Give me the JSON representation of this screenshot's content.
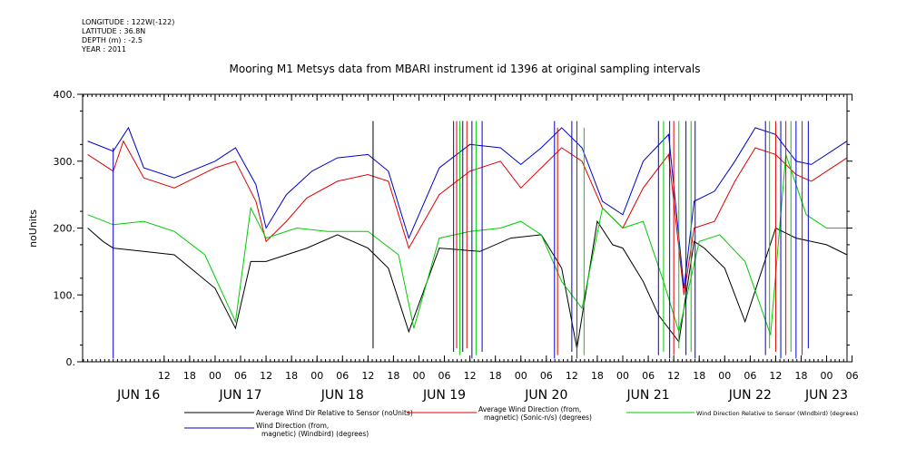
{
  "metadata": [
    "LONGITUDE : 122W(-122)",
    "LATITUDE : 36.8N",
    "DEPTH (m) : -2.5",
    "YEAR : 2011"
  ],
  "chart_data": {
    "type": "line",
    "title": "Mooring M1 Metsys data from MBARI instrument id 1396 at original sampling intervals",
    "ylabel": "noUnits",
    "xlabel": "",
    "ylim": [
      0,
      400
    ],
    "yticks": [
      0,
      100,
      200,
      300,
      400
    ],
    "ytick_labels": [
      "0.",
      "100.",
      "200.",
      "300.",
      "400."
    ],
    "xlim": [
      -0.3,
      7.2
    ],
    "hour_ticks": [
      {
        "x": 0.5,
        "label": "12"
      },
      {
        "x": 0.75,
        "label": "18"
      },
      {
        "x": 1.0,
        "label": "00"
      },
      {
        "x": 1.25,
        "label": "06"
      },
      {
        "x": 1.5,
        "label": "12"
      },
      {
        "x": 1.75,
        "label": "18"
      },
      {
        "x": 2.0,
        "label": "00"
      },
      {
        "x": 2.25,
        "label": "06"
      },
      {
        "x": 2.5,
        "label": "12"
      },
      {
        "x": 2.75,
        "label": "18"
      },
      {
        "x": 3.0,
        "label": "00"
      },
      {
        "x": 3.25,
        "label": "06"
      },
      {
        "x": 3.5,
        "label": "12"
      },
      {
        "x": 3.75,
        "label": "18"
      },
      {
        "x": 4.0,
        "label": "00"
      },
      {
        "x": 4.25,
        "label": "06"
      },
      {
        "x": 4.5,
        "label": "12"
      },
      {
        "x": 4.75,
        "label": "18"
      },
      {
        "x": 5.0,
        "label": "00"
      },
      {
        "x": 5.25,
        "label": "06"
      },
      {
        "x": 5.5,
        "label": "12"
      },
      {
        "x": 5.75,
        "label": "18"
      },
      {
        "x": 6.0,
        "label": "00"
      },
      {
        "x": 6.25,
        "label": "06"
      },
      {
        "x": 6.5,
        "label": "12"
      },
      {
        "x": 6.75,
        "label": "18"
      },
      {
        "x": 7.0,
        "label": "00"
      },
      {
        "x": 7.25,
        "label": "06"
      }
    ],
    "day_labels": [
      {
        "x": 0.25,
        "label": "JUN 16"
      },
      {
        "x": 1.25,
        "label": "JUN 17"
      },
      {
        "x": 2.25,
        "label": "JUN 18"
      },
      {
        "x": 3.25,
        "label": "JUN 19"
      },
      {
        "x": 4.25,
        "label": "JUN 20"
      },
      {
        "x": 5.25,
        "label": "JUN 21"
      },
      {
        "x": 6.25,
        "label": "JUN 22"
      },
      {
        "x": 7.0,
        "label": "JUN 23"
      }
    ],
    "series": [
      {
        "name": "Average Wind Dir Relative to Sensor (noUnits)",
        "color": "#000000",
        "x": [
          -0.25,
          -0.1,
          0.0,
          0.3,
          0.6,
          1.0,
          1.2,
          1.35,
          1.5,
          1.9,
          2.2,
          2.5,
          2.7,
          2.9,
          3.2,
          3.6,
          3.9,
          4.2,
          4.4,
          4.55,
          4.75,
          4.9,
          5.0,
          5.2,
          5.35,
          5.55,
          5.7,
          5.8,
          6.0,
          6.2,
          6.5,
          6.7,
          7.0,
          7.2
        ],
        "values": [
          200,
          180,
          170,
          165,
          160,
          110,
          50,
          150,
          150,
          170,
          190,
          170,
          140,
          45,
          170,
          165,
          185,
          190,
          140,
          20,
          210,
          175,
          170,
          120,
          70,
          30,
          180,
          170,
          140,
          60,
          200,
          185,
          175,
          160
        ]
      },
      {
        "name": "Average Wind Direction (from, magnetic) (Sonic-n/s) (degrees)",
        "color": "#e00000",
        "x": [
          -0.25,
          0.0,
          0.1,
          0.3,
          0.6,
          1.0,
          1.2,
          1.4,
          1.5,
          1.7,
          1.9,
          2.2,
          2.5,
          2.7,
          2.9,
          3.2,
          3.5,
          3.8,
          4.0,
          4.2,
          4.4,
          4.6,
          4.8,
          5.0,
          5.2,
          5.45,
          5.6,
          5.7,
          5.9,
          6.1,
          6.3,
          6.5,
          6.7,
          6.85,
          7.2
        ],
        "values": [
          310,
          285,
          330,
          275,
          260,
          290,
          300,
          240,
          180,
          210,
          245,
          270,
          280,
          270,
          170,
          250,
          285,
          300,
          260,
          290,
          320,
          300,
          230,
          200,
          260,
          310,
          100,
          200,
          210,
          270,
          320,
          310,
          280,
          270,
          305
        ]
      },
      {
        "name": "Wind Direction Relative to Sensor (Windbird) (degrees)",
        "color": "#00cc00",
        "x": [
          -0.25,
          0.0,
          0.3,
          0.6,
          0.9,
          1.2,
          1.35,
          1.5,
          1.8,
          2.1,
          2.5,
          2.8,
          2.95,
          3.2,
          3.5,
          3.8,
          4.0,
          4.2,
          4.4,
          4.6,
          4.8,
          5.0,
          5.2,
          5.4,
          5.55,
          5.75,
          5.95,
          6.2,
          6.45,
          6.6,
          6.8,
          7.0,
          7.2
        ],
        "values": [
          220,
          205,
          210,
          195,
          160,
          60,
          230,
          185,
          200,
          195,
          195,
          160,
          50,
          185,
          195,
          200,
          210,
          190,
          120,
          80,
          230,
          200,
          210,
          120,
          45,
          180,
          190,
          150,
          40,
          310,
          220,
          200,
          200
        ]
      },
      {
        "name": "Wind Direction (from, magnetic) (Windbird) (degrees)",
        "color": "#0000cc",
        "x": [
          -0.25,
          0.0,
          0.15,
          0.3,
          0.6,
          1.0,
          1.2,
          1.4,
          1.5,
          1.7,
          1.95,
          2.2,
          2.5,
          2.7,
          2.9,
          3.2,
          3.5,
          3.8,
          4.0,
          4.2,
          4.4,
          4.6,
          4.8,
          5.0,
          5.2,
          5.45,
          5.6,
          5.7,
          5.9,
          6.1,
          6.3,
          6.5,
          6.7,
          6.85,
          7.2
        ],
        "values": [
          330,
          315,
          350,
          290,
          275,
          300,
          320,
          265,
          200,
          250,
          285,
          305,
          310,
          285,
          185,
          290,
          325,
          320,
          295,
          320,
          350,
          320,
          240,
          220,
          300,
          340,
          110,
          240,
          255,
          300,
          350,
          340,
          300,
          295,
          330
        ]
      }
    ],
    "spikes": [
      {
        "x": 0.0,
        "ymin": 5,
        "ymax": 320,
        "color": "#0000cc"
      },
      {
        "x": 2.55,
        "ymin": 20,
        "ymax": 360,
        "color": "#000000"
      },
      {
        "x": 3.34,
        "ymin": 15,
        "ymax": 360,
        "color": "#0000cc"
      },
      {
        "x": 3.37,
        "ymin": 20,
        "ymax": 360,
        "color": "#e00000"
      },
      {
        "x": 3.4,
        "ymin": 10,
        "ymax": 360,
        "color": "#00cc00"
      },
      {
        "x": 3.43,
        "ymin": 15,
        "ymax": 360,
        "color": "#0000cc"
      },
      {
        "x": 3.47,
        "ymin": 20,
        "ymax": 360,
        "color": "#e00000"
      },
      {
        "x": 3.52,
        "ymin": 5,
        "ymax": 360,
        "color": "#0000cc"
      },
      {
        "x": 3.56,
        "ymin": 10,
        "ymax": 360,
        "color": "#00cc00"
      },
      {
        "x": 3.62,
        "ymin": 15,
        "ymax": 360,
        "color": "#0000cc"
      },
      {
        "x": 4.33,
        "ymin": 5,
        "ymax": 360,
        "color": "#0000cc"
      },
      {
        "x": 4.36,
        "ymin": 10,
        "ymax": 350,
        "color": "#e00000"
      },
      {
        "x": 4.5,
        "ymin": 15,
        "ymax": 360,
        "color": "#0000cc"
      },
      {
        "x": 4.55,
        "ymin": 5,
        "ymax": 360,
        "color": "#e00000"
      },
      {
        "x": 4.62,
        "ymin": 10,
        "ymax": 350,
        "color": "#00cc00"
      },
      {
        "x": 5.35,
        "ymin": 10,
        "ymax": 360,
        "color": "#0000cc"
      },
      {
        "x": 5.4,
        "ymin": 15,
        "ymax": 360,
        "color": "#00cc00"
      },
      {
        "x": 5.46,
        "ymin": 5,
        "ymax": 360,
        "color": "#0000cc"
      },
      {
        "x": 5.5,
        "ymin": 10,
        "ymax": 360,
        "color": "#e00000"
      },
      {
        "x": 5.55,
        "ymin": 20,
        "ymax": 360,
        "color": "#00cc00"
      },
      {
        "x": 5.62,
        "ymin": 10,
        "ymax": 360,
        "color": "#0000cc"
      },
      {
        "x": 5.67,
        "ymin": 15,
        "ymax": 360,
        "color": "#00cc00"
      },
      {
        "x": 5.71,
        "ymin": 5,
        "ymax": 360,
        "color": "#0000cc"
      },
      {
        "x": 6.4,
        "ymin": 10,
        "ymax": 360,
        "color": "#0000cc"
      },
      {
        "x": 6.44,
        "ymin": 20,
        "ymax": 360,
        "color": "#00cc00"
      },
      {
        "x": 6.5,
        "ymin": 15,
        "ymax": 360,
        "color": "#e00000"
      },
      {
        "x": 6.55,
        "ymin": 5,
        "ymax": 360,
        "color": "#0000cc"
      },
      {
        "x": 6.6,
        "ymin": 10,
        "ymax": 360,
        "color": "#e00000"
      },
      {
        "x": 6.65,
        "ymin": 15,
        "ymax": 360,
        "color": "#00cc00"
      },
      {
        "x": 6.7,
        "ymin": 5,
        "ymax": 360,
        "color": "#0000cc"
      },
      {
        "x": 6.76,
        "ymin": 10,
        "ymax": 360,
        "color": "#e00000"
      },
      {
        "x": 6.82,
        "ymin": 20,
        "ymax": 360,
        "color": "#0000cc"
      }
    ],
    "legend": {
      "placement": "bottom",
      "entries": [
        {
          "series": 0,
          "lines": [
            "Average Wind Dir Relative to Sensor (noUnits)"
          ]
        },
        {
          "series": 1,
          "lines": [
            "Average Wind Direction (from,",
            "magnetic) (Sonic-n/s) (degrees)"
          ]
        },
        {
          "series": 2,
          "lines": [
            "Wind Direction Relative to Sensor (Windbird) (degrees)"
          ]
        },
        {
          "series": 3,
          "lines": [
            "Wind Direction (from,",
            "magnetic) (Windbird) (degrees)"
          ]
        }
      ]
    }
  }
}
